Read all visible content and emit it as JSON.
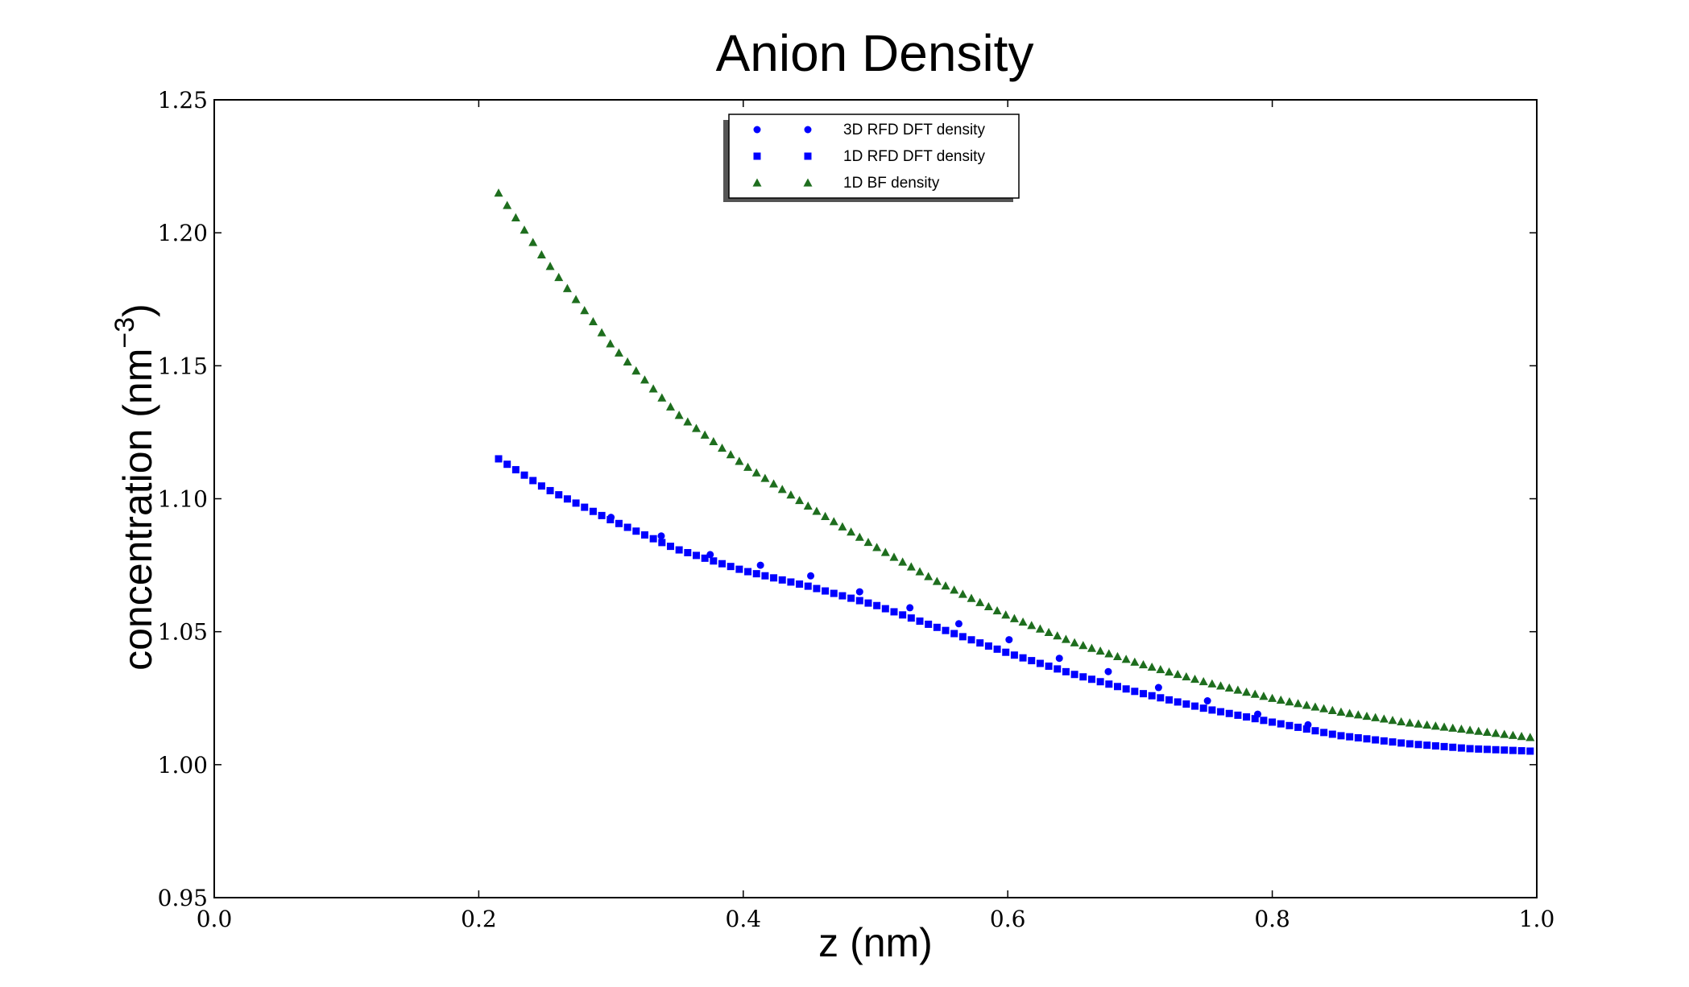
{
  "chart_data": {
    "type": "scatter",
    "title": "Anion Density",
    "xlabel": "z (nm)",
    "ylabel": "concentration (nm",
    "ylabel_superscript": "−3",
    "ylabel_suffix": ")",
    "xlim": [
      0.0,
      1.0
    ],
    "ylim": [
      0.95,
      1.25
    ],
    "xticks": [
      0.0,
      0.2,
      0.4,
      0.6,
      0.8,
      1.0
    ],
    "xtick_labels": [
      "0.0",
      "0.2",
      "0.4",
      "0.6",
      "0.8",
      "1.0"
    ],
    "yticks": [
      0.95,
      1.0,
      1.05,
      1.1,
      1.15,
      1.2,
      1.25
    ],
    "ytick_labels": [
      "0.95",
      "1.00",
      "1.05",
      "1.10",
      "1.15",
      "1.20",
      "1.25"
    ],
    "grid": false,
    "legend_position": "top-center",
    "series": [
      {
        "name": "3D RFD DFT density",
        "marker": "circle",
        "color": "#0000ff",
        "x": [
          0.3,
          0.338,
          0.375,
          0.413,
          0.451,
          0.488,
          0.526,
          0.563,
          0.601,
          0.639,
          0.676,
          0.714,
          0.751,
          0.789,
          0.827
        ],
        "y": [
          1.093,
          1.086,
          1.079,
          1.075,
          1.071,
          1.065,
          1.059,
          1.053,
          1.047,
          1.04,
          1.035,
          1.029,
          1.024,
          1.019,
          1.015
        ]
      },
      {
        "name": "1D RFD DFT density",
        "marker": "square",
        "color": "#0000ff",
        "x": [
          0.215,
          0.25,
          0.3,
          0.35,
          0.4,
          0.45,
          0.5,
          0.55,
          0.6,
          0.65,
          0.7,
          0.75,
          0.8,
          0.85,
          0.9,
          0.95,
          1.0
        ],
        "y": [
          1.115,
          1.104,
          1.092,
          1.081,
          1.073,
          1.067,
          1.06,
          1.051,
          1.042,
          1.034,
          1.027,
          1.021,
          1.016,
          1.011,
          1.008,
          1.006,
          1.005
        ]
      },
      {
        "name": "1D BF density",
        "marker": "triangle",
        "color": "#1e6e1e",
        "x": [
          0.215,
          0.25,
          0.3,
          0.35,
          0.4,
          0.45,
          0.5,
          0.55,
          0.6,
          0.65,
          0.7,
          0.75,
          0.8,
          0.85,
          0.9,
          0.95,
          1.0
        ],
        "y": [
          1.215,
          1.19,
          1.158,
          1.132,
          1.113,
          1.097,
          1.082,
          1.068,
          1.056,
          1.046,
          1.038,
          1.031,
          1.025,
          1.02,
          1.016,
          1.013,
          1.01
        ]
      }
    ]
  }
}
